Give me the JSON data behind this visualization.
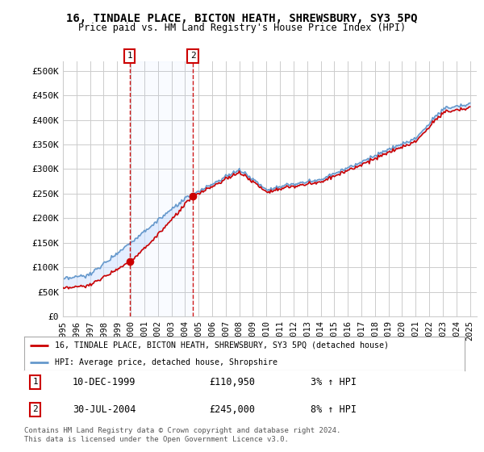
{
  "title": "16, TINDALE PLACE, BICTON HEATH, SHREWSBURY, SY3 5PQ",
  "subtitle": "Price paid vs. HM Land Registry's House Price Index (HPI)",
  "ylim": [
    0,
    520000
  ],
  "yticks": [
    0,
    50000,
    100000,
    150000,
    200000,
    250000,
    300000,
    350000,
    400000,
    450000,
    500000
  ],
  "ytick_labels": [
    "£0",
    "£50K",
    "£100K",
    "£150K",
    "£200K",
    "£250K",
    "£300K",
    "£350K",
    "£400K",
    "£450K",
    "£500K"
  ],
  "hpi_color": "#6699cc",
  "price_color": "#cc0000",
  "sale1_date_label": "10-DEC-1999",
  "sale1_price_label": "£110,950",
  "sale1_price": 110950,
  "sale1_hpi_pct": "3% ↑ HPI",
  "sale1_x": 1999.92,
  "sale2_date_label": "30-JUL-2004",
  "sale2_price_label": "£245,000",
  "sale2_price": 245000,
  "sale2_hpi_pct": "8% ↑ HPI",
  "sale2_x": 2004.57,
  "legend_label1": "16, TINDALE PLACE, BICTON HEATH, SHREWSBURY, SY3 5PQ (detached house)",
  "legend_label2": "HPI: Average price, detached house, Shropshire",
  "footnote": "Contains HM Land Registry data © Crown copyright and database right 2024.\nThis data is licensed under the Open Government Licence v3.0.",
  "background_color": "#ffffff",
  "grid_color": "#cccccc",
  "start_year": 1995,
  "end_year": 2025
}
